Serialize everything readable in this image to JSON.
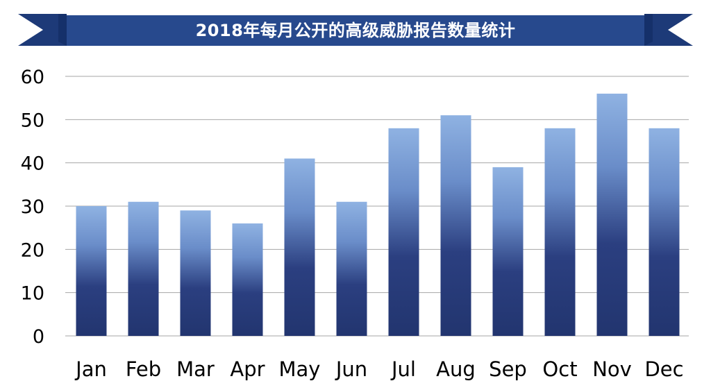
{
  "chart_data": {
    "type": "bar",
    "title": "2018年每月公开的高级威胁报告数量统计",
    "categories": [
      "Jan",
      "Feb",
      "Mar",
      "Apr",
      "May",
      "Jun",
      "Jul",
      "Aug",
      "Sep",
      "Oct",
      "Nov",
      "Dec"
    ],
    "values": [
      30,
      31,
      29,
      26,
      41,
      31,
      48,
      51,
      39,
      48,
      56,
      48
    ],
    "xlabel": "",
    "ylabel": "",
    "ylim": [
      0,
      60
    ],
    "yticks": [
      "0",
      "10",
      "20",
      "30",
      "40",
      "50",
      "60"
    ],
    "grid": true,
    "legend": "none",
    "colors": {
      "banner": "#27498d",
      "banner_dark": "#1d3a78",
      "bar_top": "#8fb2e2",
      "bar_bottom": "#22356f",
      "grid": "#a6a6a6"
    }
  }
}
